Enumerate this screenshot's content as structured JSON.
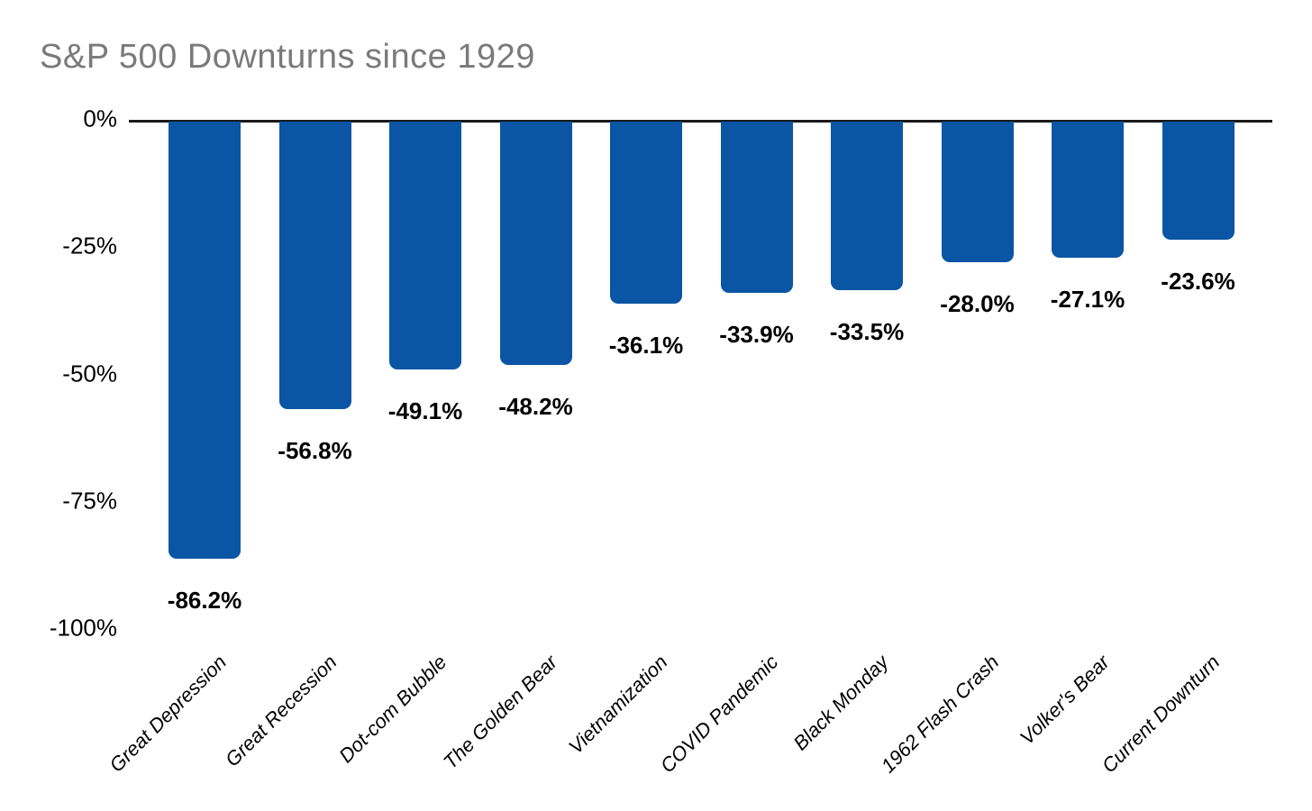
{
  "title": "S&P 500 Downturns since 1929",
  "colors": {
    "bar": "#0B55A5",
    "title": "#7A7A7A",
    "axis_line": "#1A1A1A",
    "text": "#000000",
    "background": "#FFFFFF"
  },
  "chart_data": {
    "type": "bar",
    "orientation": "vertical-negative",
    "title": "S&P 500 Downturns since 1929",
    "xlabel": "",
    "ylabel": "",
    "ylim": [
      -100,
      0
    ],
    "grid": false,
    "legend": false,
    "categories": [
      "Great Depression",
      "Great Recession",
      "Dot-com Bubble",
      "The Golden Bear",
      "Vietnamization",
      "COVID Pandemic",
      "Black Monday",
      "1962 Flash Crash",
      "Volker's Bear",
      "Current Downturn"
    ],
    "values": [
      -86.2,
      -56.8,
      -49.1,
      -48.2,
      -36.1,
      -33.9,
      -33.5,
      -28.0,
      -27.1,
      -23.6
    ],
    "data_labels": [
      "-86.2%",
      "-56.8%",
      "-49.1%",
      "-48.2%",
      "-36.1%",
      "-33.9%",
      "-33.5%",
      "-28.0%",
      "-27.1%",
      "-23.6%"
    ],
    "yticks": [
      {
        "value": 0,
        "label": "0%"
      },
      {
        "value": -25,
        "label": "-25%"
      },
      {
        "value": -50,
        "label": "-50%"
      },
      {
        "value": -75,
        "label": "-75%"
      },
      {
        "value": -100,
        "label": "-100%"
      }
    ]
  }
}
